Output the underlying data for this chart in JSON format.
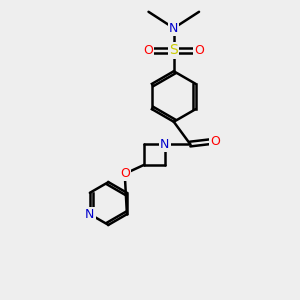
{
  "bg_color": "#eeeeee",
  "atom_colors": {
    "C": "#000000",
    "N": "#0000cc",
    "O": "#ff0000",
    "S": "#cccc00"
  },
  "figsize": [
    3.0,
    3.0
  ],
  "dpi": 100
}
